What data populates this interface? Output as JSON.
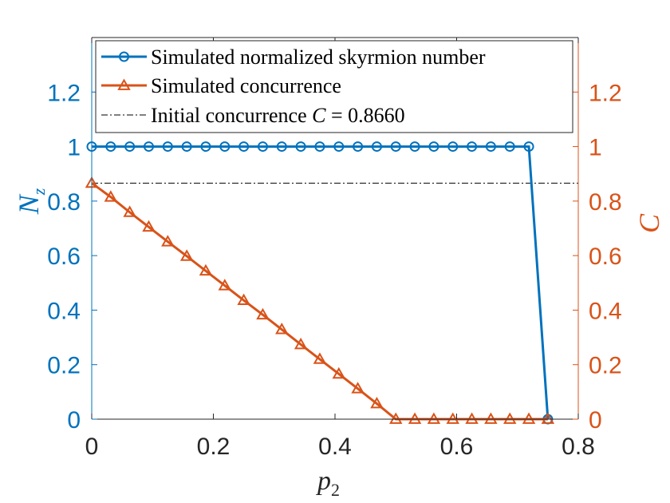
{
  "chart_data": {
    "type": "line",
    "x": [
      0,
      0.03125,
      0.0625,
      0.09375,
      0.125,
      0.15625,
      0.1875,
      0.21875,
      0.25,
      0.28125,
      0.3125,
      0.34375,
      0.375,
      0.40625,
      0.4375,
      0.46875,
      0.5,
      0.53125,
      0.5625,
      0.59375,
      0.625,
      0.65625,
      0.6875,
      0.71875,
      0.75
    ],
    "series": [
      {
        "name": "Simulated normalized skyrmion number",
        "axis": "left",
        "color": "#0072BD",
        "marker": "circle",
        "values": [
          1,
          1,
          1,
          1,
          1,
          1,
          1,
          1,
          1,
          1,
          1,
          1,
          1,
          1,
          1,
          1,
          1,
          1,
          1,
          1,
          1,
          1,
          1,
          1,
          0
        ]
      },
      {
        "name": "Simulated concurrence",
        "axis": "right",
        "color": "#D95319",
        "marker": "triangle",
        "values": [
          0.866,
          0.815,
          0.759,
          0.705,
          0.651,
          0.598,
          0.544,
          0.49,
          0.436,
          0.383,
          0.329,
          0.274,
          0.22,
          0.166,
          0.112,
          0.057,
          0,
          0,
          0,
          0,
          0,
          0,
          0,
          0,
          0
        ]
      }
    ],
    "reference_line": {
      "name_prefix": "Initial concurrence",
      "symbol": "C",
      "equals": "=",
      "value_text": "0.8660",
      "value": 0.866,
      "style": "dash-dot",
      "color": "#000000"
    },
    "xlabel": "p",
    "xlabel_sub": "2",
    "ylabel_left": "N",
    "ylabel_left_sub": "z",
    "ylabel_right": "C",
    "xlim": [
      0,
      0.8
    ],
    "ylim_left": [
      0,
      1.4
    ],
    "ylim_right": [
      0,
      1.4
    ],
    "xticks": [
      0,
      0.2,
      0.4,
      0.6,
      0.8
    ],
    "xtick_labels": [
      "0",
      "0.2",
      "0.4",
      "0.6",
      "0.8"
    ],
    "yticks": [
      0,
      0.2,
      0.4,
      0.6,
      0.8,
      1,
      1.2
    ],
    "ytick_labels": [
      "0",
      "0.2",
      "0.4",
      "0.6",
      "0.8",
      "1",
      "1.2"
    ],
    "legend_location": "top",
    "grid": false,
    "colors": {
      "left_axis": "#0072BD",
      "right_axis": "#D95319",
      "axes": "#262626"
    }
  }
}
